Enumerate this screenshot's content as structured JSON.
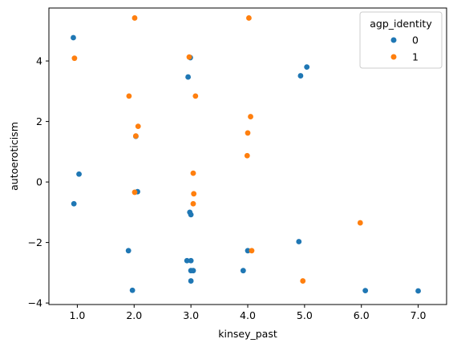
{
  "chart_data": {
    "type": "scatter",
    "xlabel": "kinsey_past",
    "ylabel": "autoeroticism",
    "xlim": [
      0.5,
      7.5
    ],
    "ylim": [
      -4.05,
      5.75
    ],
    "x_ticks": [
      1.0,
      2.0,
      3.0,
      4.0,
      5.0,
      6.0,
      7.0
    ],
    "x_tick_labels": [
      "1.0",
      "2.0",
      "3.0",
      "4.0",
      "5.0",
      "6.0",
      "7.0"
    ],
    "y_ticks": [
      -4,
      -2,
      0,
      2,
      4
    ],
    "y_tick_labels": [
      "−4",
      "−2",
      "0",
      "2",
      "4"
    ],
    "grid": false,
    "legend": {
      "title": "agp_identity",
      "placement": "upper right"
    },
    "series": [
      {
        "name": "0",
        "color": "#1f77b4",
        "points": [
          [
            0.93,
            4.77
          ],
          [
            0.94,
            -0.72
          ],
          [
            1.03,
            0.26
          ],
          [
            1.9,
            -2.27
          ],
          [
            1.97,
            -3.58
          ],
          [
            2.03,
            1.51
          ],
          [
            2.06,
            -0.32
          ],
          [
            2.95,
            3.47
          ],
          [
            2.98,
            -1.0
          ],
          [
            2.99,
            4.11
          ],
          [
            3.0,
            -1.08
          ],
          [
            2.93,
            -2.6
          ],
          [
            3.0,
            -2.6
          ],
          [
            3.0,
            -2.93
          ],
          [
            3.04,
            -2.93
          ],
          [
            3.0,
            -3.27
          ],
          [
            3.92,
            -2.93
          ],
          [
            4.0,
            -2.27
          ],
          [
            4.9,
            -1.97
          ],
          [
            4.93,
            3.51
          ],
          [
            5.04,
            3.8
          ],
          [
            6.07,
            -3.59
          ],
          [
            7.0,
            -3.6
          ]
        ]
      },
      {
        "name": "1",
        "color": "#ff7f0e",
        "points": [
          [
            0.95,
            4.09
          ],
          [
            1.91,
            2.84
          ],
          [
            2.01,
            5.42
          ],
          [
            2.03,
            1.52
          ],
          [
            2.07,
            1.84
          ],
          [
            2.01,
            -0.34
          ],
          [
            2.97,
            4.13
          ],
          [
            3.04,
            0.29
          ],
          [
            3.05,
            -0.39
          ],
          [
            3.04,
            -0.72
          ],
          [
            3.08,
            2.84
          ],
          [
            4.02,
            5.42
          ],
          [
            4.05,
            2.16
          ],
          [
            4.0,
            1.62
          ],
          [
            3.99,
            0.87
          ],
          [
            4.07,
            -2.27
          ],
          [
            4.97,
            -3.27
          ],
          [
            5.98,
            -1.35
          ]
        ]
      }
    ]
  }
}
